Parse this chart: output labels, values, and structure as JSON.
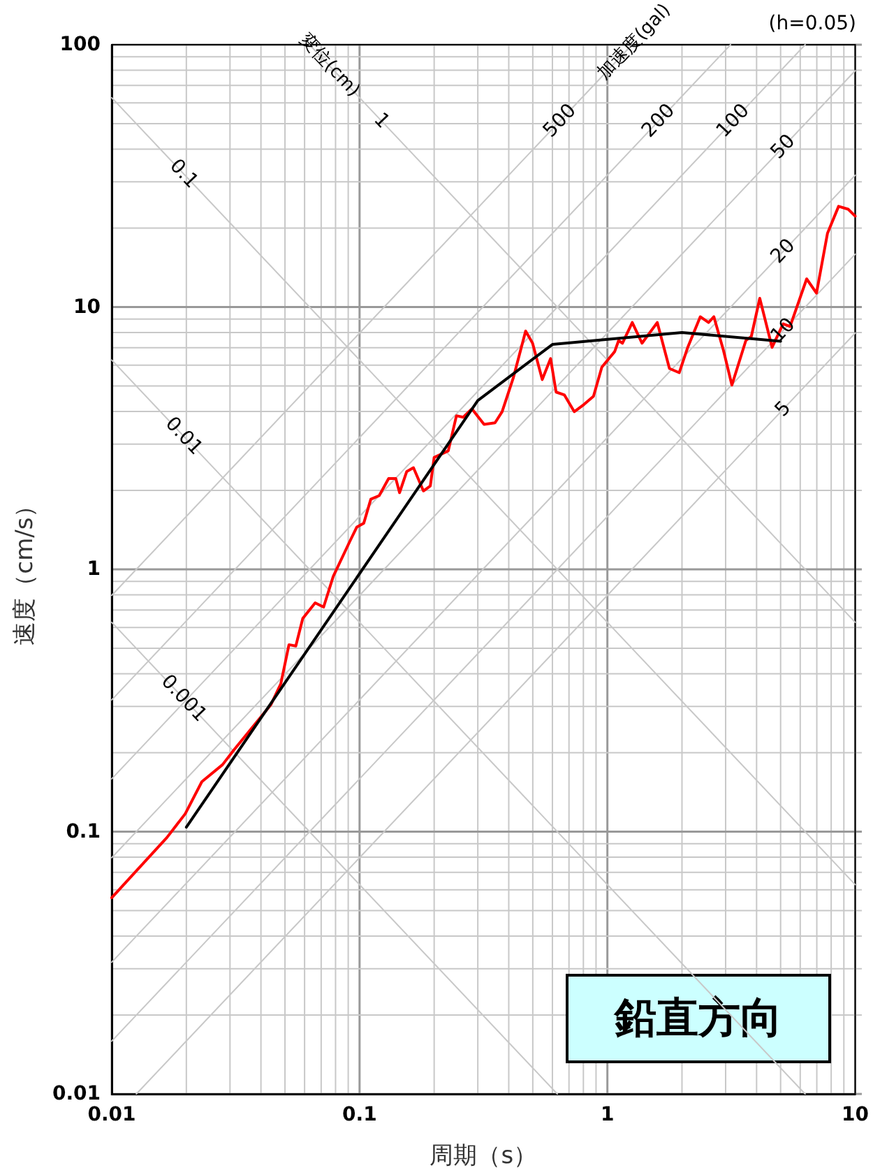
{
  "chart_data": {
    "type": "line",
    "xlabel": "周期（s）",
    "ylabel": "速度（cm/s）",
    "log": "xy",
    "grid": true,
    "marker": "none",
    "line_style": "solid",
    "xlim": [
      0.01,
      10
    ],
    "ylim": [
      0.01,
      100
    ],
    "xticks": [
      0.01,
      0.1,
      1,
      10
    ],
    "yticks": [
      0.01,
      0.1,
      1,
      10,
      100
    ],
    "series": [
      {
        "name": "1",
        "color": "#c8c8c8",
        "x": [
          0.0628,
          10
        ],
        "values": [
          100,
          0.628
        ]
      },
      {
        "name": "0.1",
        "color": "#c8c8c8",
        "x": [
          0.01,
          10
        ],
        "values": [
          62.8,
          0.0628
        ]
      },
      {
        "name": "0.01",
        "color": "#c8c8c8",
        "x": [
          0.01,
          6.28
        ],
        "values": [
          6.28,
          0.01
        ]
      },
      {
        "name": "0.001",
        "color": "#c8c8c8",
        "x": [
          0.01,
          0.628
        ],
        "values": [
          0.628,
          0.01
        ]
      },
      {
        "name": "500",
        "color": "#c8c8c8",
        "x": [
          0.01,
          1.257
        ],
        "values": [
          0.796,
          100
        ]
      },
      {
        "name": "200",
        "color": "#c8c8c8",
        "x": [
          0.01,
          3.142
        ],
        "values": [
          0.318,
          100
        ]
      },
      {
        "name": "100",
        "color": "#c8c8c8",
        "x": [
          0.01,
          6.283
        ],
        "values": [
          0.159,
          100
        ]
      },
      {
        "name": "50",
        "color": "#c8c8c8",
        "x": [
          0.01,
          10
        ],
        "values": [
          0.0796,
          79.6
        ]
      },
      {
        "name": "20",
        "color": "#c8c8c8",
        "x": [
          0.01,
          10
        ],
        "values": [
          0.0318,
          31.8
        ]
      },
      {
        "name": "10",
        "color": "#c8c8c8",
        "x": [
          0.01,
          10
        ],
        "values": [
          0.0159,
          15.9
        ]
      },
      {
        "name": "5",
        "color": "#c8c8c8",
        "x": [
          0.01257,
          10
        ],
        "values": [
          0.01,
          7.96
        ]
      },
      {
        "color": "#ff0000",
        "x": [
          0.01,
          0.0167,
          0.0198,
          0.0231,
          0.028,
          0.031,
          0.0362,
          0.0439,
          0.0481,
          0.0519,
          0.0553,
          0.059,
          0.0662,
          0.0716,
          0.0783,
          0.0914,
          0.0975,
          0.104,
          0.111,
          0.12,
          0.131,
          0.14,
          0.145,
          0.155,
          0.165,
          0.181,
          0.193,
          0.2,
          0.228,
          0.246,
          0.262,
          0.284,
          0.318,
          0.352,
          0.376,
          0.417,
          0.468,
          0.499,
          0.546,
          0.59,
          0.621,
          0.671,
          0.735,
          0.804,
          0.879,
          0.95,
          1.07,
          1.11,
          1.15,
          1.26,
          1.38,
          1.59,
          1.78,
          1.95,
          2.11,
          2.37,
          2.56,
          2.69,
          2.94,
          3.18,
          3.62,
          3.81,
          4.12,
          4.62,
          5.12,
          5.46,
          6.37,
          6.98,
          7.73,
          8.57,
          9.37,
          10
        ],
        "values": [
          0.056,
          0.095,
          0.117,
          0.155,
          0.18,
          0.204,
          0.244,
          0.305,
          0.366,
          0.516,
          0.51,
          0.65,
          0.745,
          0.718,
          0.94,
          1.28,
          1.45,
          1.5,
          1.85,
          1.91,
          2.22,
          2.22,
          1.96,
          2.36,
          2.44,
          1.99,
          2.08,
          2.67,
          2.83,
          3.85,
          3.8,
          4.09,
          3.57,
          3.62,
          3.99,
          5.36,
          8.1,
          7.28,
          5.29,
          6.36,
          4.74,
          4.62,
          3.99,
          4.25,
          4.57,
          5.9,
          6.76,
          7.45,
          7.28,
          8.73,
          7.28,
          8.73,
          5.83,
          5.62,
          7.02,
          9.18,
          8.73,
          9.18,
          6.84,
          5.04,
          7.45,
          7.73,
          10.8,
          7.02,
          8.63,
          8.43,
          12.8,
          11.3,
          19.1,
          24.2,
          23.6,
          22.2
        ]
      },
      {
        "color": "#000000",
        "x": [
          0.02,
          0.3,
          0.6,
          2,
          5
        ],
        "values": [
          0.104,
          4.4,
          7.2,
          8.0,
          7.4
        ]
      }
    ],
    "annotations": [
      "(h=0.05)",
      "鉛直方向",
      "変位(cm)",
      "加速度(gal)"
    ]
  }
}
